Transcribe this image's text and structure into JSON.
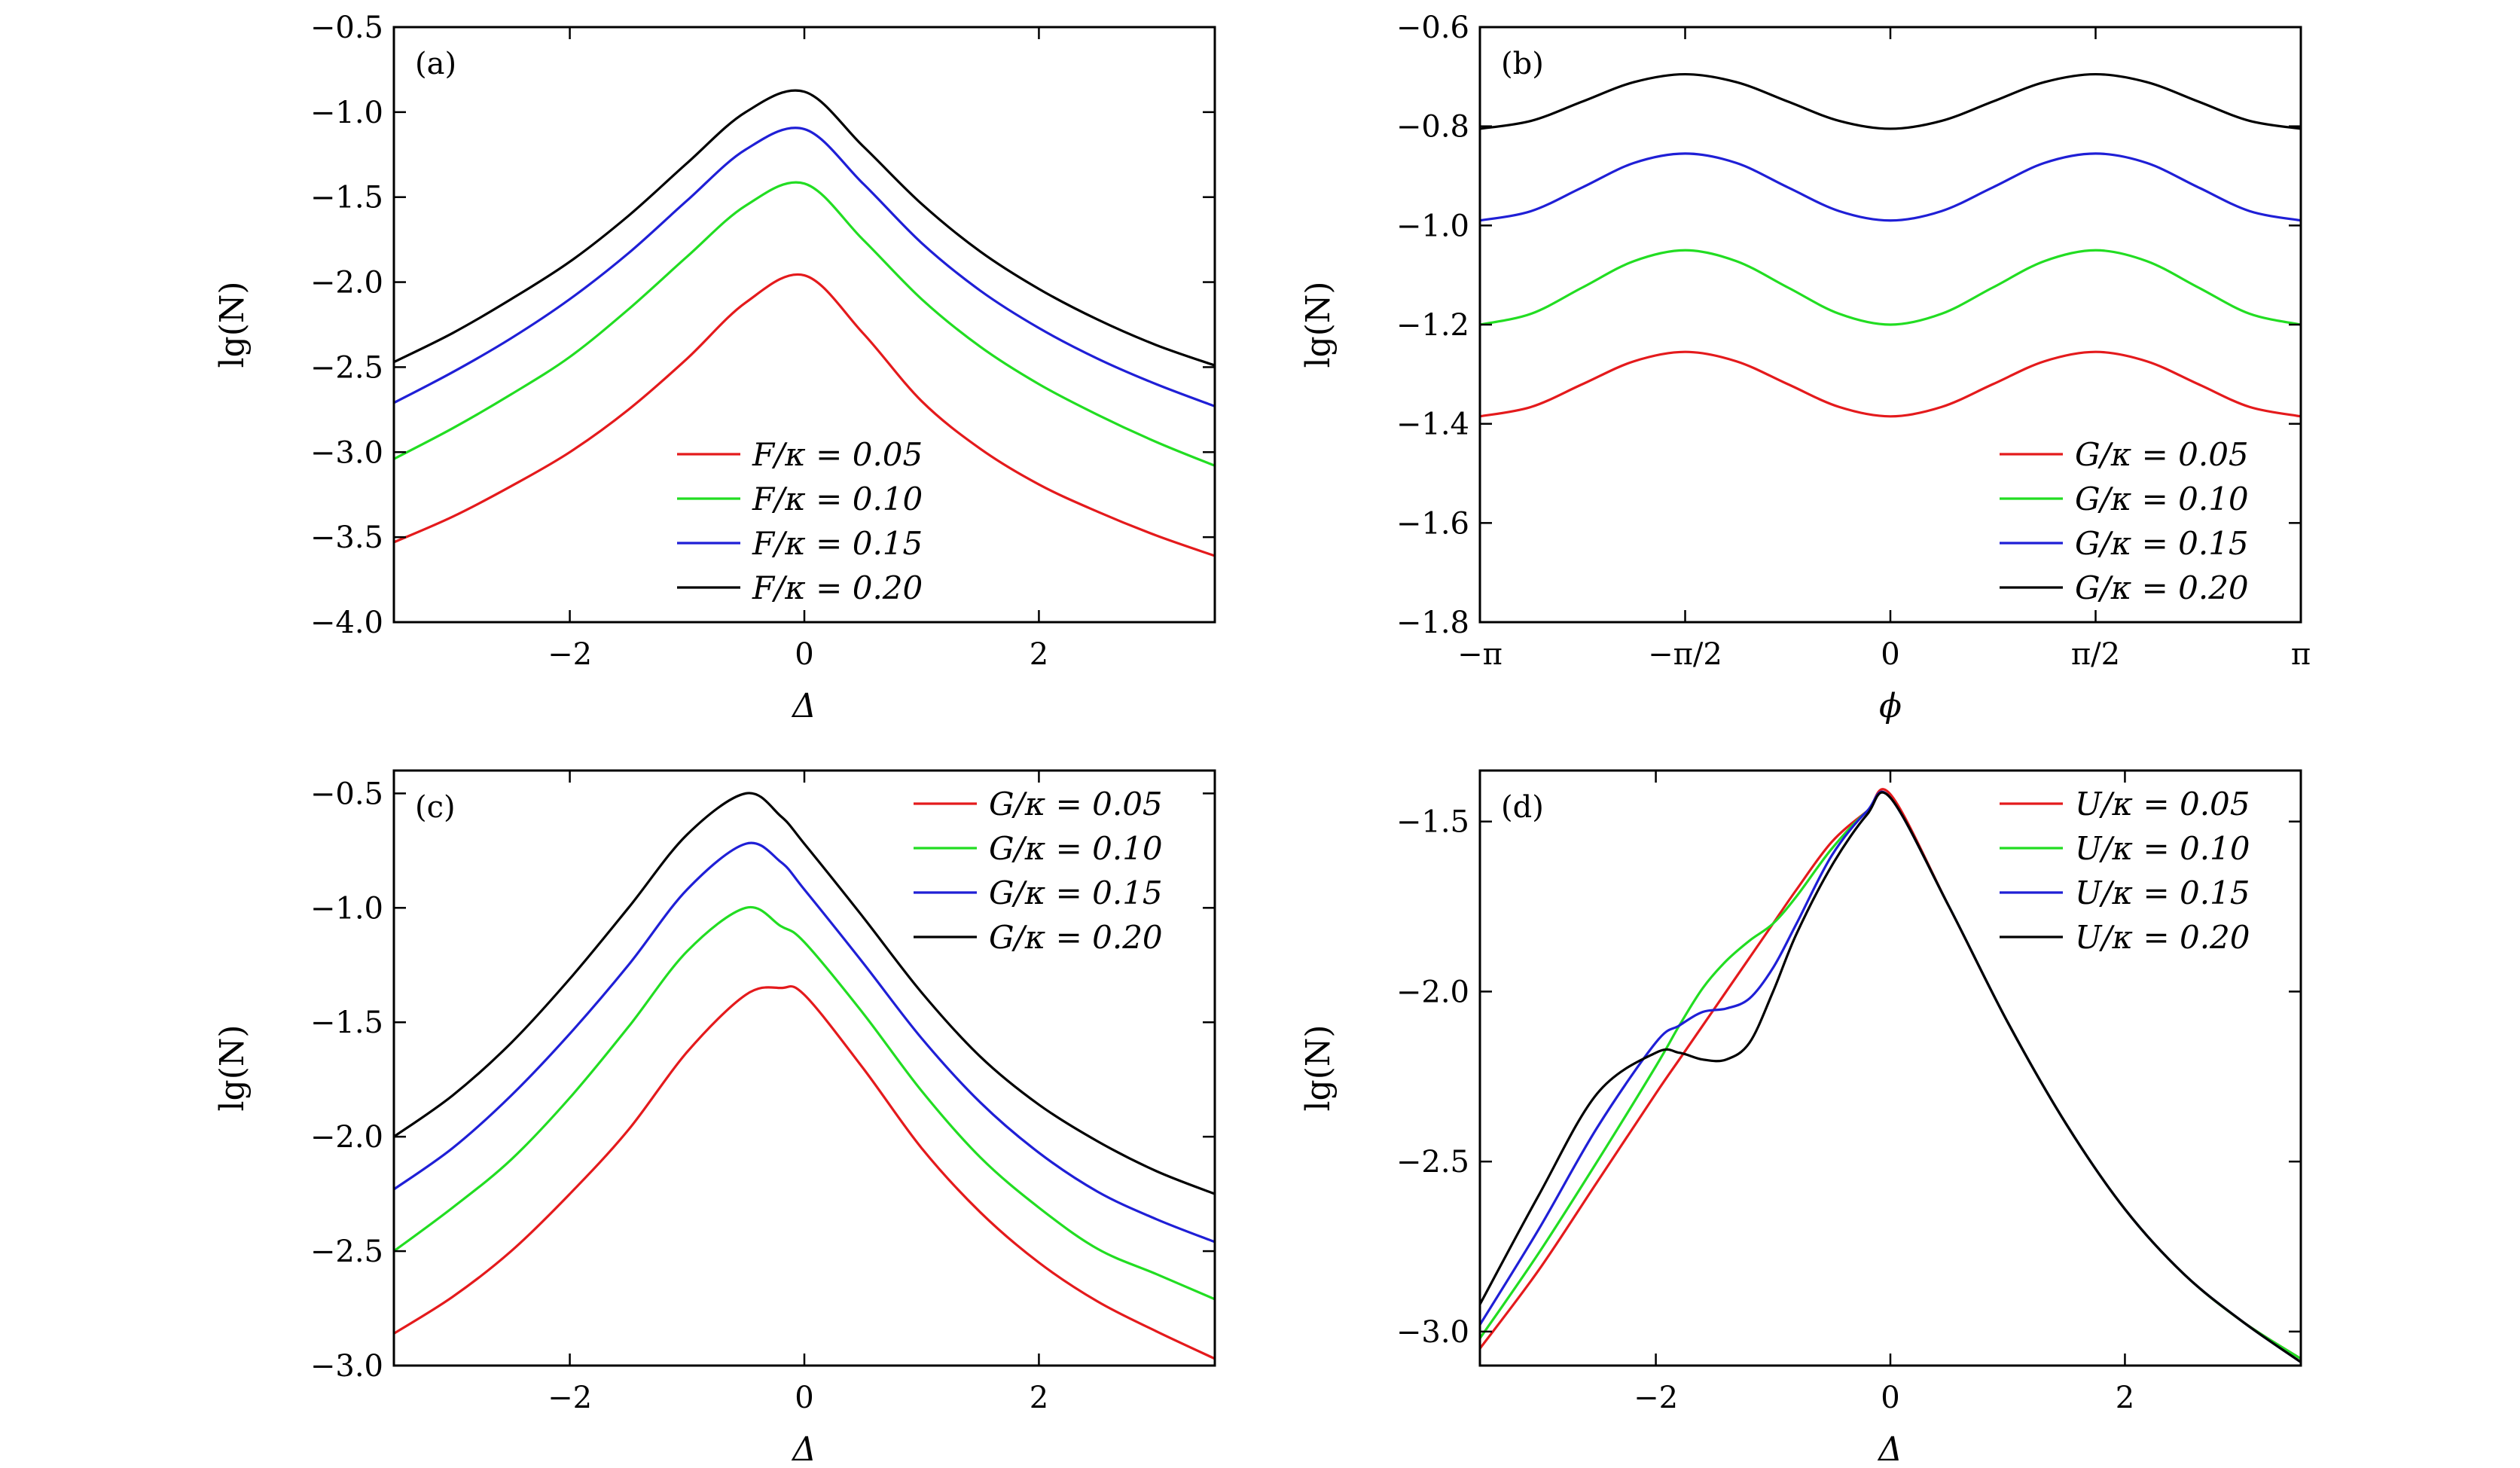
{
  "chart_data": [
    {
      "panel": "(a)",
      "type": "line",
      "xlabel": "Δ",
      "ylabel": "lg(N)",
      "xlim": [
        -3.5,
        3.5
      ],
      "ylim": [
        -4.0,
        -0.5
      ],
      "xticks": [
        -2,
        0,
        2
      ],
      "xtick_labels": [
        "−2",
        "0",
        "2"
      ],
      "yticks": [
        -4.0,
        -3.5,
        -3.0,
        -2.5,
        -2.0,
        -1.5,
        -1.0,
        -0.5
      ],
      "ytick_labels": [
        "−4.0",
        "−3.5",
        "−3.0",
        "−2.5",
        "−2.0",
        "−1.5",
        "−1.0",
        "−0.5"
      ],
      "legend_position": "lower-center",
      "x": [
        -3.5,
        -3.0,
        -2.5,
        -2.0,
        -1.5,
        -1.0,
        -0.5,
        0.0,
        0.5,
        1.0,
        1.5,
        2.0,
        2.5,
        3.0,
        3.5
      ],
      "series": [
        {
          "name": "F/κ = 0.05",
          "color": "#e41a1c",
          "values": [
            -3.53,
            -3.38,
            -3.2,
            -3.0,
            -2.75,
            -2.45,
            -2.12,
            -1.96,
            -2.3,
            -2.7,
            -2.98,
            -3.19,
            -3.35,
            -3.49,
            -3.61
          ]
        },
        {
          "name": "F/κ = 0.10",
          "color": "#22dd22",
          "values": [
            -3.04,
            -2.86,
            -2.66,
            -2.44,
            -2.16,
            -1.85,
            -1.55,
            -1.42,
            -1.75,
            -2.1,
            -2.38,
            -2.6,
            -2.78,
            -2.94,
            -3.08
          ]
        },
        {
          "name": "F/κ = 0.15",
          "color": "#1f1fd6",
          "values": [
            -2.71,
            -2.53,
            -2.33,
            -2.1,
            -1.83,
            -1.52,
            -1.22,
            -1.1,
            -1.42,
            -1.77,
            -2.05,
            -2.27,
            -2.45,
            -2.6,
            -2.73
          ]
        },
        {
          "name": "F/κ = 0.20",
          "color": "#000000",
          "values": [
            -2.47,
            -2.3,
            -2.1,
            -1.88,
            -1.61,
            -1.3,
            -1.0,
            -0.88,
            -1.2,
            -1.54,
            -1.82,
            -2.04,
            -2.22,
            -2.37,
            -2.49
          ]
        }
      ]
    },
    {
      "panel": "(b)",
      "type": "line",
      "xlabel": "ϕ",
      "ylabel": "lg(N)",
      "xlim": [
        -3.14159,
        3.14159
      ],
      "ylim": [
        -1.8,
        -0.6
      ],
      "xticks": [
        -3.14159,
        -1.5708,
        0,
        1.5708,
        3.14159
      ],
      "xtick_labels": [
        "−π",
        "−π/2",
        "0",
        "π/2",
        "π"
      ],
      "yticks": [
        -1.8,
        -1.6,
        -1.4,
        -1.2,
        -1.0,
        -0.8,
        -0.6
      ],
      "ytick_labels": [
        "−1.8",
        "−1.6",
        "−1.4",
        "−1.2",
        "−1.0",
        "−0.8",
        "−0.6"
      ],
      "legend_position": "lower-right",
      "x": [
        -3.14159,
        -2.74889,
        -2.35619,
        -1.9635,
        -1.5708,
        -1.1781,
        -0.7854,
        -0.3927,
        0.0,
        0.3927,
        0.7854,
        1.1781,
        1.5708,
        1.9635,
        2.35619,
        2.74889,
        3.14159
      ],
      "series": [
        {
          "name": "G/κ = 0.05",
          "color": "#e41a1c",
          "values": [
            -1.385,
            -1.366,
            -1.32,
            -1.274,
            -1.255,
            -1.274,
            -1.32,
            -1.366,
            -1.385,
            -1.366,
            -1.32,
            -1.274,
            -1.255,
            -1.274,
            -1.32,
            -1.366,
            -1.385
          ]
        },
        {
          "name": "G/κ = 0.10",
          "color": "#22dd22",
          "values": [
            -1.2,
            -1.178,
            -1.125,
            -1.072,
            -1.05,
            -1.072,
            -1.125,
            -1.178,
            -1.2,
            -1.178,
            -1.125,
            -1.072,
            -1.05,
            -1.072,
            -1.125,
            -1.178,
            -1.2
          ]
        },
        {
          "name": "G/κ = 0.15",
          "color": "#1f1fd6",
          "values": [
            -0.99,
            -0.971,
            -0.923,
            -0.874,
            -0.855,
            -0.874,
            -0.923,
            -0.971,
            -0.99,
            -0.971,
            -0.923,
            -0.874,
            -0.855,
            -0.874,
            -0.923,
            -0.971,
            -0.99
          ]
        },
        {
          "name": "G/κ = 0.20",
          "color": "#000000",
          "values": [
            -0.805,
            -0.789,
            -0.75,
            -0.711,
            -0.695,
            -0.711,
            -0.75,
            -0.789,
            -0.805,
            -0.789,
            -0.75,
            -0.711,
            -0.695,
            -0.711,
            -0.75,
            -0.789,
            -0.805
          ]
        }
      ]
    },
    {
      "panel": "(c)",
      "type": "line",
      "xlabel": "Δ",
      "ylabel": "lg(N)",
      "xlim": [
        -3.5,
        3.5
      ],
      "ylim": [
        -3.0,
        -0.4
      ],
      "xticks": [
        -2,
        0,
        2
      ],
      "xtick_labels": [
        "−2",
        "0",
        "2"
      ],
      "yticks": [
        -3.0,
        -2.5,
        -2.0,
        -1.5,
        -1.0,
        -0.5
      ],
      "ytick_labels": [
        "−3.0",
        "−2.5",
        "−2.0",
        "−1.5",
        "−1.0",
        "−0.5"
      ],
      "legend_position": "top-right",
      "x": [
        -3.5,
        -3.0,
        -2.5,
        -2.0,
        -1.5,
        -1.0,
        -0.5,
        -0.2,
        0.0,
        0.5,
        1.0,
        1.5,
        2.0,
        2.5,
        3.0,
        3.5
      ],
      "series": [
        {
          "name": "G/κ = 0.05",
          "color": "#e41a1c",
          "values": [
            -2.86,
            -2.7,
            -2.5,
            -2.25,
            -1.97,
            -1.63,
            -1.38,
            -1.35,
            -1.38,
            -1.7,
            -2.05,
            -2.33,
            -2.55,
            -2.72,
            -2.85,
            -2.97
          ]
        },
        {
          "name": "G/κ = 0.10",
          "color": "#22dd22",
          "values": [
            -2.5,
            -2.31,
            -2.1,
            -1.83,
            -1.52,
            -1.19,
            -1.0,
            -1.08,
            -1.15,
            -1.46,
            -1.8,
            -2.09,
            -2.31,
            -2.49,
            -2.6,
            -2.71
          ]
        },
        {
          "name": "G/κ = 0.15",
          "color": "#1f1fd6",
          "values": [
            -2.23,
            -2.05,
            -1.82,
            -1.55,
            -1.25,
            -0.92,
            -0.72,
            -0.8,
            -0.92,
            -1.24,
            -1.57,
            -1.85,
            -2.07,
            -2.24,
            -2.36,
            -2.46
          ]
        },
        {
          "name": "G/κ = 0.20",
          "color": "#000000",
          "values": [
            -2.0,
            -1.82,
            -1.59,
            -1.31,
            -1.0,
            -0.68,
            -0.5,
            -0.6,
            -0.72,
            -1.04,
            -1.37,
            -1.65,
            -1.86,
            -2.02,
            -2.15,
            -2.25
          ]
        }
      ]
    },
    {
      "panel": "(d)",
      "type": "line",
      "xlabel": "Δ",
      "ylabel": "lg(N)",
      "xlim": [
        -3.5,
        3.5
      ],
      "ylim": [
        -3.1,
        -1.35
      ],
      "xticks": [
        -2,
        0,
        2
      ],
      "xtick_labels": [
        "−2",
        "0",
        "2"
      ],
      "yticks": [
        -3.0,
        -2.5,
        -2.0,
        -1.5
      ],
      "ytick_labels": [
        "−3.0",
        "−2.5",
        "−2.0",
        "−1.5"
      ],
      "legend_position": "top-right",
      "x": [
        -3.5,
        -3.0,
        -2.5,
        -2.0,
        -1.8,
        -1.6,
        -1.4,
        -1.2,
        -1.0,
        -0.8,
        -0.5,
        -0.2,
        0.0,
        0.5,
        1.0,
        1.5,
        2.0,
        2.5,
        3.0,
        3.5
      ],
      "series": [
        {
          "name": "U/κ = 0.05",
          "color": "#e41a1c",
          "values": [
            -3.05,
            -2.82,
            -2.56,
            -2.3,
            -2.2,
            -2.1,
            -2.0,
            -1.9,
            -1.8,
            -1.7,
            -1.56,
            -1.47,
            -1.42,
            -1.75,
            -2.09,
            -2.39,
            -2.64,
            -2.83,
            -2.97,
            -3.08
          ]
        },
        {
          "name": "U/κ = 0.10",
          "color": "#22dd22",
          "values": [
            -3.02,
            -2.77,
            -2.5,
            -2.22,
            -2.1,
            -1.99,
            -1.91,
            -1.85,
            -1.8,
            -1.72,
            -1.58,
            -1.47,
            -1.43,
            -1.75,
            -2.09,
            -2.39,
            -2.64,
            -2.83,
            -2.97,
            -3.08
          ]
        },
        {
          "name": "U/κ = 0.15",
          "color": "#1f1fd6",
          "values": [
            -2.98,
            -2.7,
            -2.4,
            -2.15,
            -2.1,
            -2.06,
            -2.05,
            -2.02,
            -1.93,
            -1.8,
            -1.6,
            -1.47,
            -1.43,
            -1.75,
            -2.09,
            -2.39,
            -2.64,
            -2.83,
            -2.97,
            -3.09
          ]
        },
        {
          "name": "U/κ = 0.20",
          "color": "#000000",
          "values": [
            -2.92,
            -2.6,
            -2.3,
            -2.18,
            -2.18,
            -2.2,
            -2.2,
            -2.15,
            -2.0,
            -1.83,
            -1.63,
            -1.48,
            -1.43,
            -1.75,
            -2.09,
            -2.39,
            -2.64,
            -2.83,
            -2.97,
            -3.09
          ]
        }
      ]
    }
  ]
}
